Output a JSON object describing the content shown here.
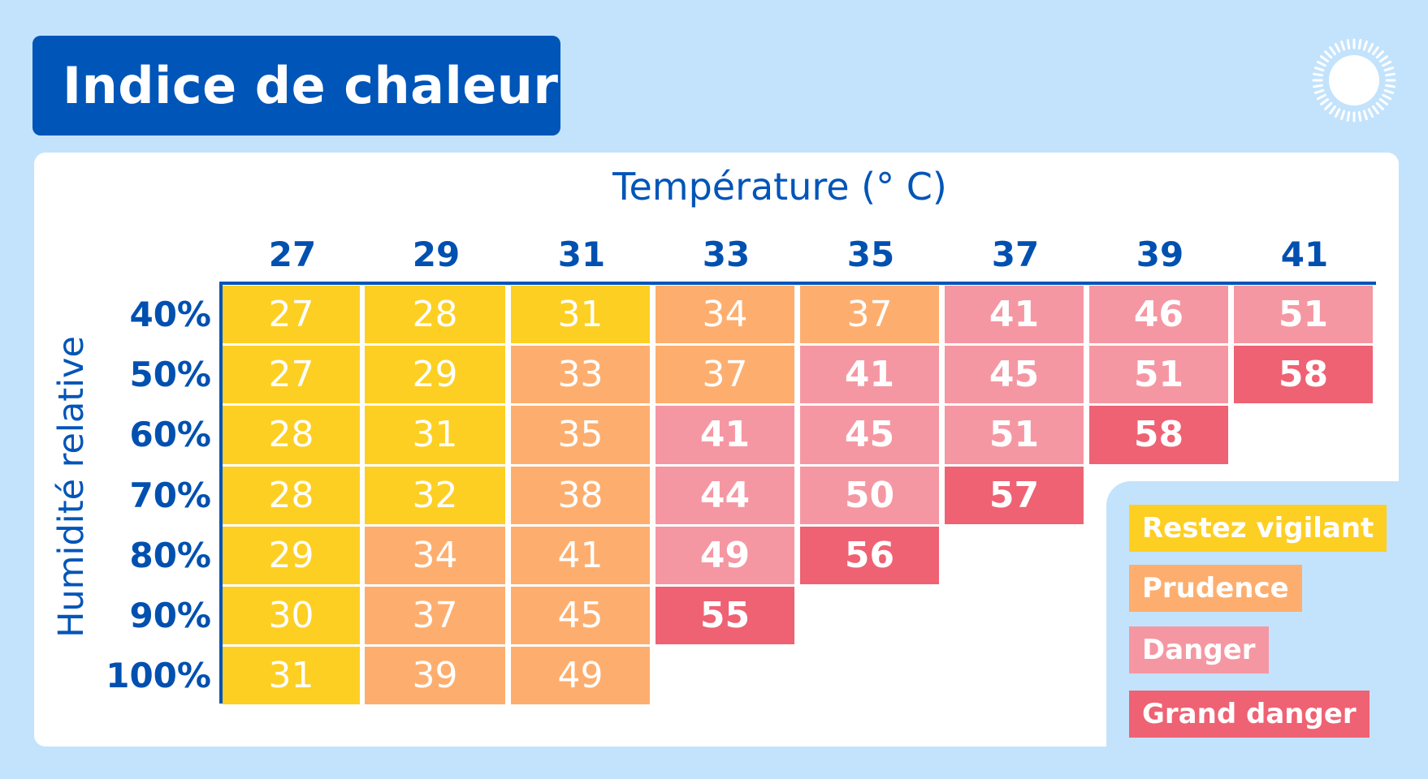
{
  "title": "Indice de chaleur",
  "colors": {
    "vigilant": "#fdcf22",
    "prudence": "#fdae6e",
    "danger": "#f597a2",
    "grand_danger": "#ee6273",
    "brand": "#0055b8"
  },
  "legend": [
    {
      "label": "Restez vigilant",
      "level": "vigilant"
    },
    {
      "label": "Prudence",
      "level": "prudence"
    },
    {
      "label": "Danger",
      "level": "danger"
    },
    {
      "label": "Grand danger",
      "level": "grand_danger"
    }
  ],
  "chart_data": {
    "type": "heatmap",
    "title": "Indice de chaleur",
    "xlabel": "Température (° C)",
    "ylabel": "Humidité relative",
    "x": [
      "27",
      "29",
      "31",
      "33",
      "35",
      "37",
      "39",
      "41"
    ],
    "y": [
      "40%",
      "50%",
      "60%",
      "70%",
      "80%",
      "90%",
      "100%"
    ],
    "values": [
      [
        27,
        28,
        31,
        34,
        37,
        41,
        46,
        51
      ],
      [
        27,
        29,
        33,
        37,
        41,
        45,
        51,
        58
      ],
      [
        28,
        31,
        35,
        41,
        45,
        51,
        58,
        null
      ],
      [
        28,
        32,
        38,
        44,
        50,
        57,
        null,
        null
      ],
      [
        29,
        34,
        41,
        49,
        56,
        null,
        null,
        null
      ],
      [
        30,
        37,
        45,
        55,
        null,
        null,
        null,
        null
      ],
      [
        31,
        39,
        49,
        null,
        null,
        null,
        null,
        null
      ]
    ],
    "levels": [
      [
        "vigilant",
        "vigilant",
        "vigilant",
        "prudence",
        "prudence",
        "danger",
        "danger",
        "danger"
      ],
      [
        "vigilant",
        "vigilant",
        "prudence",
        "prudence",
        "danger",
        "danger",
        "danger",
        "grand_danger"
      ],
      [
        "vigilant",
        "vigilant",
        "prudence",
        "danger",
        "danger",
        "danger",
        "grand_danger",
        null
      ],
      [
        "vigilant",
        "vigilant",
        "prudence",
        "danger",
        "danger",
        "grand_danger",
        null,
        null
      ],
      [
        "vigilant",
        "prudence",
        "prudence",
        "danger",
        "grand_danger",
        null,
        null,
        null
      ],
      [
        "vigilant",
        "prudence",
        "prudence",
        "grand_danger",
        null,
        null,
        null,
        null
      ],
      [
        "vigilant",
        "prudence",
        "prudence",
        null,
        null,
        null,
        null,
        null
      ]
    ]
  }
}
